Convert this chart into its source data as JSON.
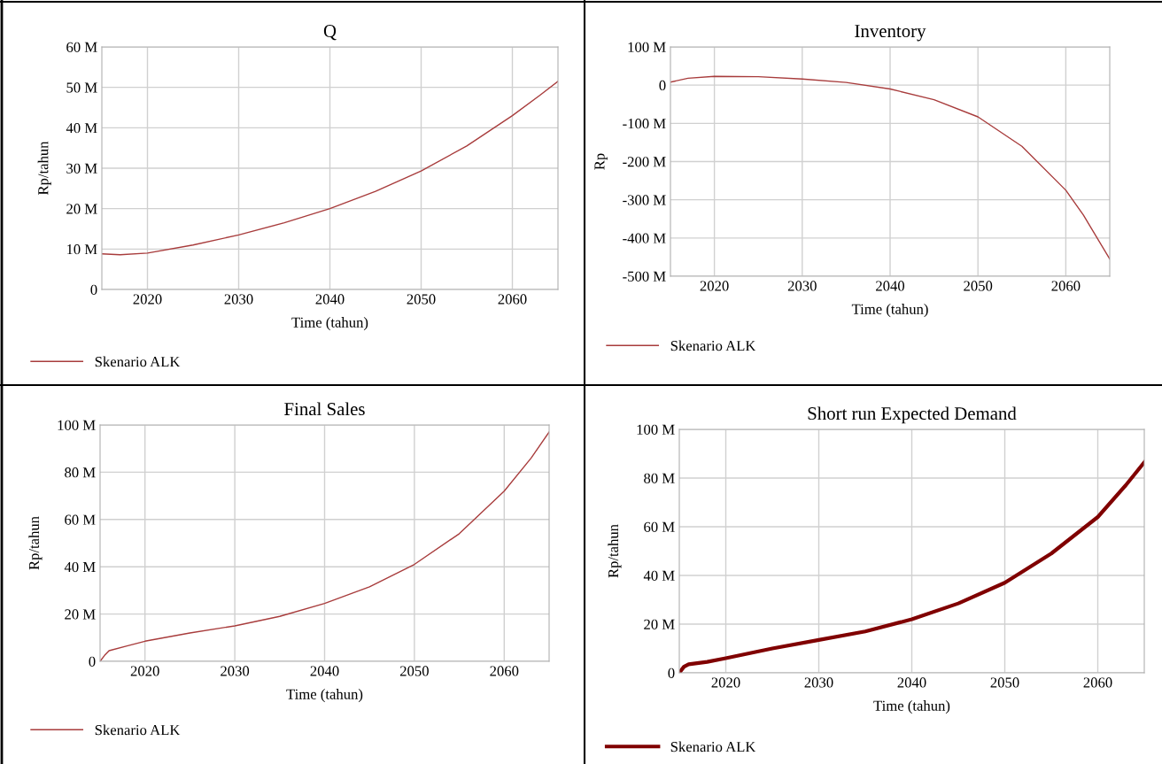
{
  "chart_data": [
    {
      "type": "line",
      "title": "Q",
      "xlabel": "Time (tahun)",
      "ylabel": "Rp/tahun",
      "xlim": [
        2015,
        2065
      ],
      "xticks": [
        2020,
        2030,
        2040,
        2050,
        2060
      ],
      "ylim": [
        0,
        60
      ],
      "yticks": [
        {
          "value": 0,
          "label": "0"
        },
        {
          "value": 10,
          "label": "10 M"
        },
        {
          "value": 20,
          "label": "20 M"
        },
        {
          "value": 30,
          "label": "30 M"
        },
        {
          "value": 40,
          "label": "40 M"
        },
        {
          "value": 50,
          "label": "50 M"
        },
        {
          "value": 60,
          "label": "60 M"
        }
      ],
      "grid": true,
      "legend": "bottom left",
      "x": [
        2015,
        2017,
        2020,
        2025,
        2030,
        2035,
        2040,
        2045,
        2050,
        2055,
        2060,
        2063,
        2065
      ],
      "series": [
        {
          "name": "Skenario ALK",
          "color": "#a83c3c",
          "values": [
            8.8,
            8.6,
            9.0,
            11,
            13.5,
            16.5,
            20,
            24.3,
            29.3,
            35.5,
            43,
            48,
            51.5
          ]
        }
      ]
    },
    {
      "type": "line",
      "title": "Inventory",
      "xlabel": "Time (tahun)",
      "ylabel": "Rp",
      "xlim": [
        2015,
        2065
      ],
      "xticks": [
        2020,
        2030,
        2040,
        2050,
        2060
      ],
      "ylim": [
        -500,
        100
      ],
      "yticks": [
        {
          "value": -500,
          "label": "-500 M"
        },
        {
          "value": -400,
          "label": "-400 M"
        },
        {
          "value": -300,
          "label": "-300 M"
        },
        {
          "value": -200,
          "label": "-200 M"
        },
        {
          "value": -100,
          "label": "-100 M"
        },
        {
          "value": 0,
          "label": "0"
        },
        {
          "value": 100,
          "label": "100 M"
        }
      ],
      "grid": true,
      "legend": "bottom left",
      "x": [
        2015,
        2017,
        2020,
        2025,
        2030,
        2035,
        2040,
        2045,
        2050,
        2055,
        2060,
        2062,
        2065
      ],
      "series": [
        {
          "name": "Skenario ALK",
          "color": "#a83c3c",
          "values": [
            8,
            18,
            23,
            22,
            16,
            7,
            -10,
            -38,
            -83,
            -160,
            -275,
            -340,
            -455
          ]
        }
      ]
    },
    {
      "type": "line",
      "title": "Final Sales",
      "xlabel": "Time (tahun)",
      "ylabel": "Rp/tahun",
      "xlim": [
        2015,
        2065
      ],
      "xticks": [
        2020,
        2030,
        2040,
        2050,
        2060
      ],
      "ylim": [
        0,
        100
      ],
      "yticks": [
        {
          "value": 0,
          "label": "0"
        },
        {
          "value": 20,
          "label": "20 M"
        },
        {
          "value": 40,
          "label": "40 M"
        },
        {
          "value": 60,
          "label": "60 M"
        },
        {
          "value": 80,
          "label": "80 M"
        },
        {
          "value": 100,
          "label": "100 M"
        }
      ],
      "grid": true,
      "legend": "bottom left",
      "x": [
        2015,
        2015.5,
        2016,
        2018,
        2020,
        2025,
        2030,
        2035,
        2040,
        2045,
        2050,
        2055,
        2060,
        2063,
        2065
      ],
      "series": [
        {
          "name": "Skenario ALK",
          "color": "#a83c3c",
          "values": [
            0,
            2.5,
            4.5,
            6.5,
            8.5,
            12,
            15,
            19,
            24.5,
            31.5,
            41,
            54,
            72,
            86,
            97
          ]
        }
      ]
    },
    {
      "type": "line",
      "title": "Short run Expected Demand",
      "xlabel": "Time (tahun)",
      "ylabel": "Rp/tahun",
      "xlim": [
        2015,
        2065
      ],
      "xticks": [
        2020,
        2030,
        2040,
        2050,
        2060
      ],
      "ylim": [
        0,
        100
      ],
      "yticks": [
        {
          "value": 0,
          "label": "0"
        },
        {
          "value": 20,
          "label": "20 M"
        },
        {
          "value": 40,
          "label": "40 M"
        },
        {
          "value": 60,
          "label": "60 M"
        },
        {
          "value": 80,
          "label": "80 M"
        },
        {
          "value": 100,
          "label": "100 M"
        }
      ],
      "grid": true,
      "legend": "bottom left",
      "x": [
        2015,
        2015.5,
        2016,
        2018,
        2020,
        2025,
        2030,
        2035,
        2040,
        2045,
        2050,
        2055,
        2060,
        2063,
        2065
      ],
      "series": [
        {
          "name": "Skenario ALK",
          "color": "#800000",
          "values": [
            0,
            2.5,
            3.5,
            4.5,
            6,
            10,
            13.5,
            17,
            22,
            28.5,
            37,
            49,
            64,
            77,
            86.5
          ]
        }
      ]
    }
  ]
}
